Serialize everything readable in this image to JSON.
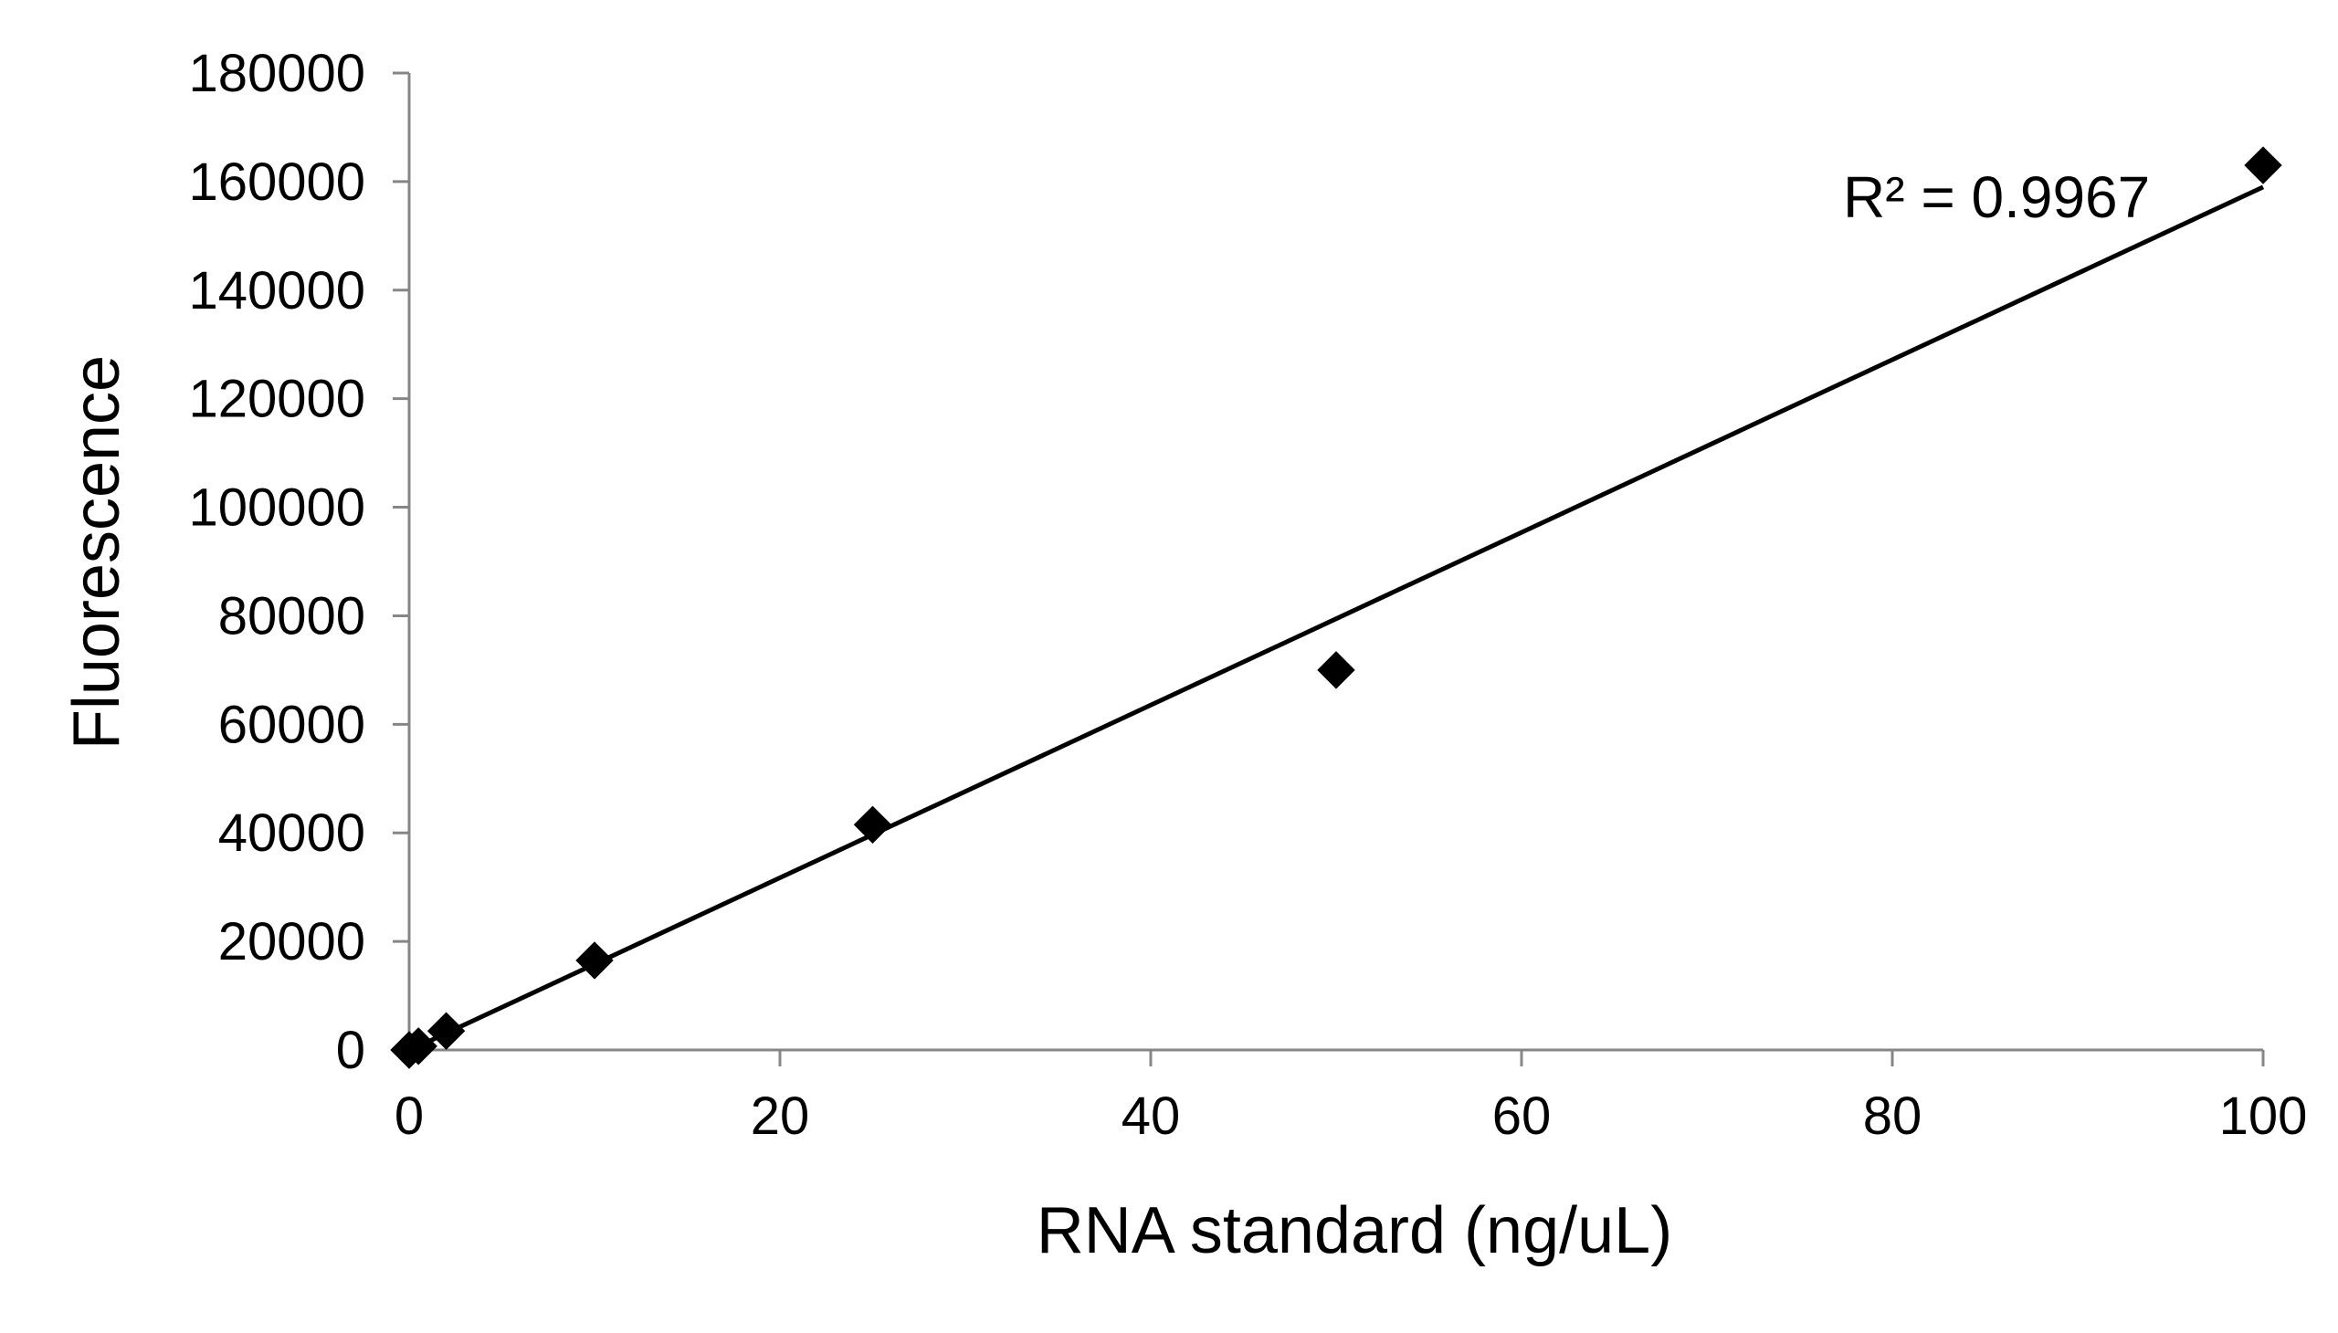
{
  "chart_data": {
    "type": "scatter",
    "title": "",
    "xlabel": "RNA standard (ng/uL)",
    "ylabel": "Fluorescence",
    "xlim": [
      0,
      100
    ],
    "ylim": [
      0,
      180000
    ],
    "x_ticks": [
      "0",
      "20",
      "40",
      "60",
      "80",
      "100"
    ],
    "y_ticks": [
      "0",
      "20000",
      "40000",
      "60000",
      "80000",
      "100000",
      "120000",
      "140000",
      "160000",
      "180000"
    ],
    "grid": false,
    "legend": "none",
    "series": [
      {
        "marker": "diamond",
        "color": "#000000",
        "points": [
          {
            "x": 0,
            "y": 0
          },
          {
            "x": 0.5,
            "y": 700
          },
          {
            "x": 2,
            "y": 3500
          },
          {
            "x": 10,
            "y": 16500
          },
          {
            "x": 25,
            "y": 41500
          },
          {
            "x": 50,
            "y": 70000
          },
          {
            "x": 100,
            "y": 163000
          }
        ]
      }
    ],
    "trendline": {
      "type": "linear",
      "color": "#000000",
      "from": {
        "x": 0.5,
        "y": 700
      },
      "to": {
        "x": 100,
        "y": 159000
      }
    },
    "annotations": [
      {
        "text": "R² = 0.9967"
      }
    ]
  }
}
